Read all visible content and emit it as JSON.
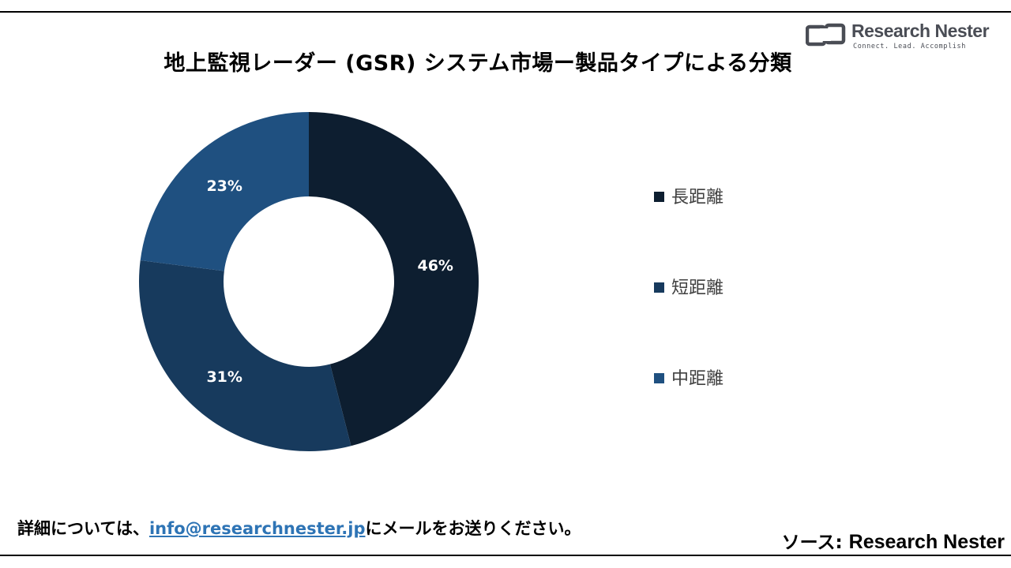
{
  "title": "地上監視レーダー (GSR) システム市場ー製品タイプによる分類",
  "logo": {
    "name": "Research Nester",
    "tagline": "Connect. Lead. Accomplish"
  },
  "footer": {
    "note_prefix": "詳細については、",
    "email": "info@researchnester.jp",
    "note_suffix": "にメールをお送りください。",
    "source_label": "ソース: ",
    "source_name": "Research Nester"
  },
  "colors": {
    "long": "#0d1e30",
    "short": "#173a5d",
    "mid": "#1f5080",
    "label": "#ffffff"
  },
  "chart_data": {
    "type": "pie",
    "donut": true,
    "categories": [
      "長距離",
      "短距離",
      "中距離"
    ],
    "values": [
      46,
      31,
      23
    ],
    "labels": [
      "46%",
      "31%",
      "23%"
    ],
    "unit": "%",
    "legend_position": "right"
  }
}
